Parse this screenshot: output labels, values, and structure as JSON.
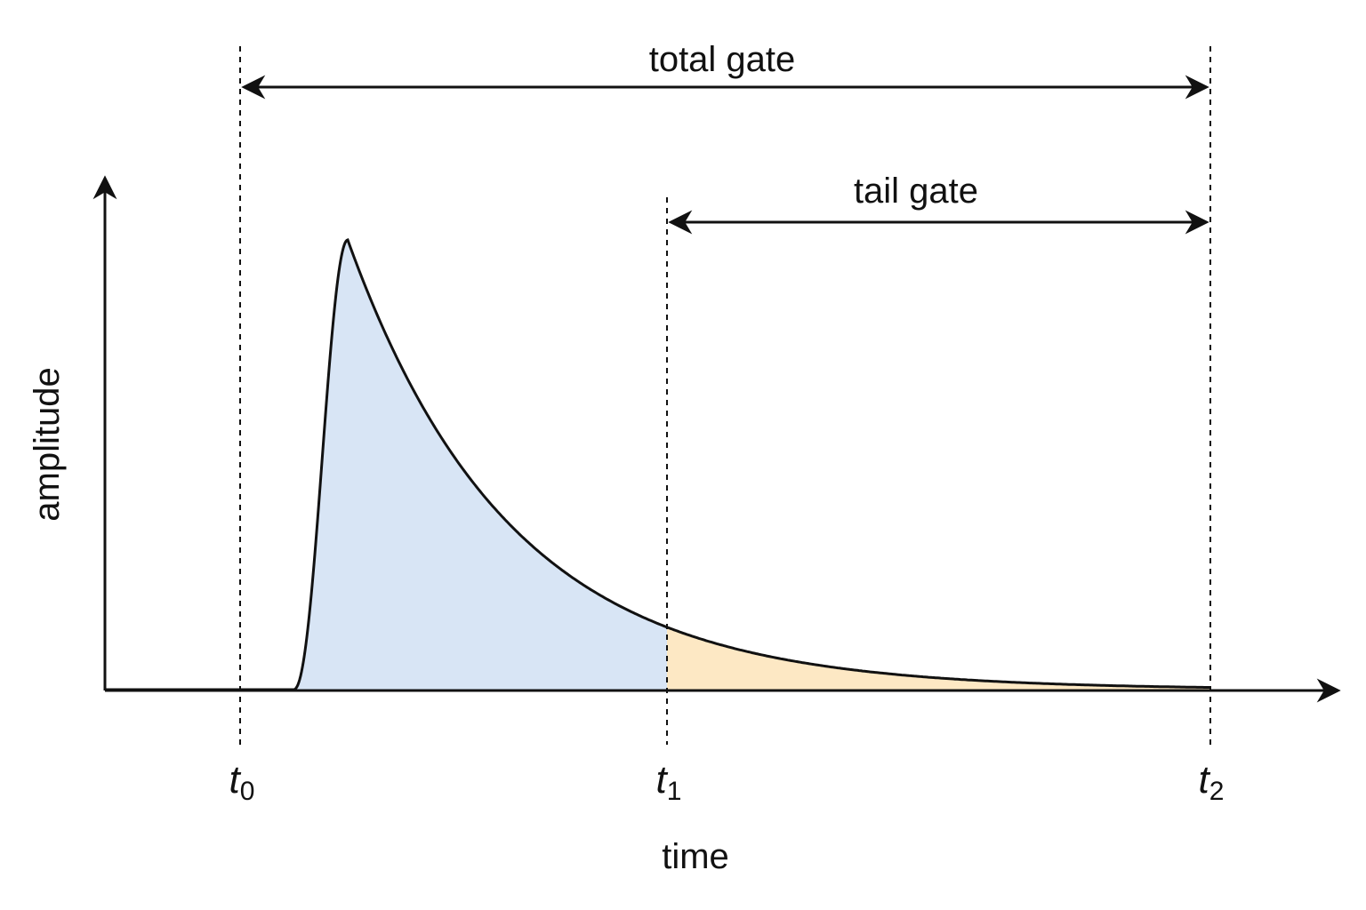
{
  "labels": {
    "total_gate": "total gate",
    "tail_gate": "tail gate",
    "y_axis": "amplitude",
    "x_axis": "time"
  },
  "markers": [
    {
      "symbol": "t",
      "subscript": "0"
    },
    {
      "symbol": "t",
      "subscript": "1"
    },
    {
      "symbol": "t",
      "subscript": "2"
    }
  ],
  "colors": {
    "total_region_fill": "#d8e5f5",
    "tail_region_fill": "#fde8c4",
    "line": "#111111"
  }
}
